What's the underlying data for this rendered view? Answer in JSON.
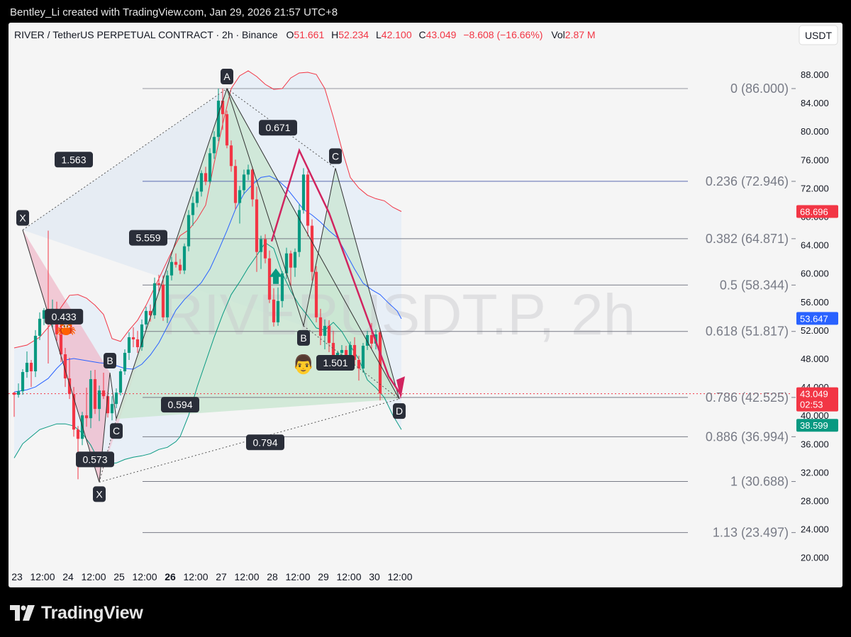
{
  "header": {
    "caption": "Bentley_Li created with TradingView.com, Jan 29, 2026 21:57 UTC+8"
  },
  "footer": {
    "brand": "TradingView"
  },
  "chart_data": {
    "type": "candlestick",
    "watermark": "RIVERUSDT.P, 2h",
    "legend": {
      "symbol": "RIVER / TetherUS PERPETUAL CONTRACT · 2h · Binance",
      "o_label": "O",
      "o": "51.661",
      "h_label": "H",
      "h": "52.234",
      "l_label": "L",
      "l": "42.100",
      "c_label": "C",
      "c": "43.049",
      "change": "−8.608 (−16.66%)",
      "vol_label": "Vol",
      "vol": "2.87 M"
    },
    "currency_button": "USDT",
    "y_axis": {
      "ylim": [
        16.5,
        91.5
      ],
      "ticks": [
        "88.000",
        "84.000",
        "80.000",
        "76.000",
        "72.000",
        "68.000",
        "64.000",
        "60.000",
        "56.000",
        "52.000",
        "48.000",
        "44.000",
        "40.000",
        "36.000",
        "32.000",
        "28.000",
        "24.000",
        "20.000"
      ]
    },
    "x_axis": {
      "labels": [
        {
          "t": 0,
          "label": "23",
          "bold": false
        },
        {
          "t": 6,
          "label": "12:00",
          "bold": false
        },
        {
          "t": 12,
          "label": "24",
          "bold": false
        },
        {
          "t": 18,
          "label": "12:00",
          "bold": false
        },
        {
          "t": 24,
          "label": "25",
          "bold": false
        },
        {
          "t": 30,
          "label": "12:00",
          "bold": false
        },
        {
          "t": 36,
          "label": "26",
          "bold": true
        },
        {
          "t": 42,
          "label": "12:00",
          "bold": false
        },
        {
          "t": 48,
          "label": "27",
          "bold": false
        },
        {
          "t": 54,
          "label": "12:00",
          "bold": false
        },
        {
          "t": 60,
          "label": "28",
          "bold": false
        },
        {
          "t": 66,
          "label": "12:00",
          "bold": false
        },
        {
          "t": 72,
          "label": "29",
          "bold": false
        },
        {
          "t": 78,
          "label": "12:00",
          "bold": false
        },
        {
          "t": 84,
          "label": "30",
          "bold": false
        },
        {
          "t": 90,
          "label": "12:00",
          "bold": false
        }
      ]
    },
    "fib_levels": [
      {
        "label": "0 (86.000)",
        "value": 86.0,
        "color": "#9598a1"
      },
      {
        "label": "0.236 (72.946)",
        "value": 72.946,
        "color": "#5b6bb0"
      },
      {
        "label": "0.382 (64.871)",
        "value": 64.871,
        "color": "#787b86"
      },
      {
        "label": "0.5 (58.344)",
        "value": 58.344,
        "color": "#787b86"
      },
      {
        "label": "0.618 (51.817)",
        "value": 51.817,
        "color": "#787b86"
      },
      {
        "label": "0.786 (42.525)",
        "value": 42.525,
        "color": "#787b86"
      },
      {
        "label": "0.886 (36.994)",
        "value": 36.994,
        "color": "#787b86"
      },
      {
        "label": "1 (30.688)",
        "value": 30.688,
        "color": "#787b86"
      },
      {
        "label": "1.13 (23.497)",
        "value": 23.497,
        "color": "#787b86"
      }
    ],
    "price_badges": [
      {
        "label": "68.696",
        "value": 68.696,
        "color": "#f23645"
      },
      {
        "label": "53.647",
        "value": 53.647,
        "color": "#2962ff"
      },
      {
        "label": "43.049",
        "sub": "02:53",
        "value": 43.049,
        "color": "#f23645"
      },
      {
        "label": "38.599",
        "value": 38.599,
        "color": "#089981"
      }
    ],
    "ratios": [
      {
        "label": "1.563",
        "t": 6,
        "v": 76.0
      },
      {
        "label": "5.559",
        "t": 23.5,
        "v": 65.0
      },
      {
        "label": "0.433",
        "t": 3.7,
        "v": 53.9
      },
      {
        "label": "0.594",
        "t": 31,
        "v": 41.5
      },
      {
        "label": "0.573",
        "t": 11,
        "v": 33.8
      },
      {
        "label": "0.794",
        "t": 51,
        "v": 36.2
      },
      {
        "label": "0.671",
        "t": 54,
        "v": 80.5
      },
      {
        "label": "1.501",
        "t": 67.5,
        "v": 47.4
      }
    ],
    "points_big": [
      {
        "label": "X",
        "t": -6,
        "v": 66.1
      },
      {
        "label": "A",
        "t": 42,
        "v": 86.0
      },
      {
        "label": "B",
        "t": 60,
        "v": 52.6
      },
      {
        "label": "C",
        "t": 67.5,
        "v": 74.8
      },
      {
        "label": "D",
        "t": 82.5,
        "v": 42.3
      }
    ],
    "points_small": [
      {
        "label": "X",
        "t": 12.0,
        "v": 30.6
      },
      {
        "label": "B",
        "t": 14.5,
        "v": 46.0
      },
      {
        "label": "C",
        "t": 16.0,
        "v": 39.5
      }
    ],
    "candles": [
      [
        43.2,
        43.3,
        39.8,
        42.9
      ],
      [
        42.9,
        44.5,
        42.5,
        43.4
      ],
      [
        43.4,
        46.5,
        42.9,
        46.1
      ],
      [
        46.1,
        49.0,
        45.3,
        47.4
      ],
      [
        47.4,
        47.8,
        44.0,
        46.2
      ],
      [
        46.2,
        52.0,
        45.4,
        51.2
      ],
      [
        51.2,
        54.5,
        50.6,
        53.6
      ],
      [
        53.6,
        55.1,
        52.7,
        54.8
      ],
      [
        54.8,
        66.0,
        47.3,
        53.8
      ],
      [
        53.8,
        56.3,
        52.3,
        55.0
      ],
      [
        55.0,
        56.0,
        50.5,
        51.4
      ],
      [
        51.4,
        54.0,
        47.5,
        48.6
      ],
      [
        48.6,
        49.5,
        44.0,
        45.2
      ],
      [
        45.2,
        48.1,
        42.3,
        43.0
      ],
      [
        43.0,
        44.0,
        37.0,
        38.0
      ],
      [
        38.0,
        38.5,
        31.0,
        36.7
      ],
      [
        36.7,
        40.5,
        35.8,
        40.0
      ],
      [
        40.0,
        43.9,
        38.4,
        39.6
      ],
      [
        39.6,
        46.3,
        38.2,
        45.1
      ],
      [
        45.1,
        46.4,
        40.2,
        40.9
      ],
      [
        40.9,
        44.2,
        39.2,
        43.5
      ],
      [
        43.5,
        46.0,
        42.3,
        42.7
      ],
      [
        42.7,
        43.3,
        39.7,
        40.3
      ],
      [
        40.3,
        42.7,
        39.3,
        41.6
      ],
      [
        41.6,
        43.8,
        41.0,
        43.2
      ],
      [
        43.2,
        46.5,
        42.8,
        46.2
      ],
      [
        46.2,
        49.3,
        45.7,
        48.8
      ],
      [
        48.8,
        51.7,
        47.8,
        51.0
      ],
      [
        51.0,
        52.4,
        49.6,
        50.7
      ],
      [
        50.7,
        51.9,
        48.8,
        49.6
      ],
      [
        49.6,
        53.5,
        49.1,
        52.8
      ],
      [
        52.8,
        55.3,
        52.0,
        54.7
      ],
      [
        54.7,
        55.6,
        53.2,
        54.1
      ],
      [
        54.1,
        59.4,
        53.6,
        58.6
      ],
      [
        58.6,
        59.8,
        57.4,
        58.4
      ],
      [
        58.4,
        59.7,
        53.3,
        53.8
      ],
      [
        53.8,
        60.4,
        53.0,
        59.7
      ],
      [
        59.7,
        62.3,
        59.0,
        61.6
      ],
      [
        61.6,
        62.8,
        60.8,
        61.2
      ],
      [
        61.2,
        62.0,
        59.9,
        60.4
      ],
      [
        60.4,
        64.2,
        59.9,
        63.8
      ],
      [
        63.8,
        68.9,
        63.1,
        68.2
      ],
      [
        68.2,
        70.8,
        66.7,
        69.9
      ],
      [
        69.9,
        72.0,
        69.3,
        71.5
      ],
      [
        71.5,
        74.5,
        70.8,
        74.1
      ],
      [
        74.1,
        75.0,
        72.4,
        72.9
      ],
      [
        72.9,
        77.6,
        72.6,
        76.9
      ],
      [
        76.9,
        80.0,
        76.1,
        79.2
      ],
      [
        79.2,
        86.0,
        78.6,
        84.3
      ],
      [
        84.3,
        86.0,
        80.2,
        82.4
      ],
      [
        82.4,
        82.9,
        77.6,
        78.0
      ],
      [
        78.0,
        78.7,
        74.3,
        75.1
      ],
      [
        75.1,
        76.0,
        69.0,
        69.9
      ],
      [
        69.9,
        72.3,
        67.0,
        71.7
      ],
      [
        71.7,
        74.6,
        71.1,
        73.9
      ],
      [
        73.9,
        75.3,
        73.1,
        74.6
      ],
      [
        74.6,
        75.0,
        69.4,
        70.4
      ],
      [
        70.4,
        72.2,
        60.2,
        63.0
      ],
      [
        63.0,
        65.3,
        60.6,
        64.8
      ],
      [
        64.8,
        65.5,
        61.4,
        62.1
      ],
      [
        62.1,
        63.2,
        55.8,
        56.3
      ],
      [
        56.3,
        57.9,
        52.5,
        53.1
      ],
      [
        53.1,
        58.0,
        52.6,
        56.1
      ],
      [
        56.1,
        60.3,
        55.2,
        60.0
      ],
      [
        60.0,
        63.6,
        59.2,
        62.8
      ],
      [
        62.8,
        63.2,
        58.2,
        60.8
      ],
      [
        60.8,
        63.5,
        59.5,
        63.0
      ],
      [
        63.0,
        69.7,
        62.3,
        68.9
      ],
      [
        68.9,
        74.8,
        68.4,
        73.9
      ],
      [
        73.9,
        74.4,
        65.2,
        66.7
      ],
      [
        66.7,
        67.6,
        59.0,
        60.2
      ],
      [
        60.2,
        61.0,
        53.1,
        53.8
      ],
      [
        53.8,
        55.0,
        49.9,
        51.2
      ],
      [
        51.2,
        53.5,
        49.3,
        52.6
      ],
      [
        52.6,
        53.4,
        48.9,
        50.2
      ],
      [
        50.2,
        51.9,
        46.6,
        47.6
      ],
      [
        47.6,
        49.1,
        46.5,
        48.8
      ],
      [
        48.8,
        49.9,
        48.0,
        49.2
      ],
      [
        49.2,
        49.8,
        47.2,
        48.5
      ],
      [
        48.5,
        50.4,
        48.0,
        49.9
      ],
      [
        49.9,
        51.0,
        47.1,
        47.8
      ],
      [
        47.8,
        48.4,
        44.9,
        46.6
      ],
      [
        46.6,
        50.2,
        46.0,
        49.8
      ],
      [
        49.8,
        51.9,
        49.2,
        51.3
      ],
      [
        51.3,
        53.0,
        49.4,
        50.1
      ],
      [
        50.1,
        52.1,
        49.3,
        51.4
      ],
      [
        51.7,
        52.2,
        42.1,
        43.1
      ]
    ],
    "bollinger_upper": [
      [
        -8,
        49.5
      ],
      [
        -5,
        49.9
      ],
      [
        -2,
        51.0
      ],
      [
        1,
        53.1
      ],
      [
        3,
        55.2
      ],
      [
        5,
        56.9
      ],
      [
        7,
        57.0
      ],
      [
        9,
        56.5
      ],
      [
        11,
        55.5
      ],
      [
        13,
        54.2
      ],
      [
        15,
        50.8
      ],
      [
        17,
        50.4
      ],
      [
        19,
        52.0
      ],
      [
        21,
        53.4
      ],
      [
        23,
        55.5
      ],
      [
        25,
        58.0
      ],
      [
        27,
        60.5
      ],
      [
        29,
        63.0
      ],
      [
        31,
        65.3
      ],
      [
        33,
        66.1
      ],
      [
        35,
        67.6
      ],
      [
        37,
        69.6
      ],
      [
        39,
        75.5
      ],
      [
        41,
        81.0
      ],
      [
        43,
        86.0
      ],
      [
        45,
        87.8
      ],
      [
        47,
        88.5
      ],
      [
        49,
        87.7
      ],
      [
        51,
        86.6
      ],
      [
        53,
        85.9
      ],
      [
        55,
        86.0
      ],
      [
        57,
        87.5
      ],
      [
        59,
        88.2
      ],
      [
        61,
        88.3
      ],
      [
        63,
        88.0
      ],
      [
        65,
        86.0
      ],
      [
        67,
        82.0
      ],
      [
        69,
        77.5
      ],
      [
        71,
        73.5
      ],
      [
        73,
        72.0
      ],
      [
        75,
        71.0
      ],
      [
        77,
        70.5
      ],
      [
        79,
        70.2
      ],
      [
        81,
        69.3
      ],
      [
        83,
        68.7
      ]
    ],
    "bollinger_basis": [
      [
        -8,
        43.3
      ],
      [
        -5,
        43.6
      ],
      [
        -3,
        44.0
      ],
      [
        0,
        45.2
      ],
      [
        2,
        46.6
      ],
      [
        4,
        47.8
      ],
      [
        6,
        48.0
      ],
      [
        8,
        47.8
      ],
      [
        10,
        47.6
      ],
      [
        12,
        47.4
      ],
      [
        14,
        47.3
      ],
      [
        16,
        47.0
      ],
      [
        18,
        46.6
      ],
      [
        20,
        46.5
      ],
      [
        22,
        47.2
      ],
      [
        24,
        48.5
      ],
      [
        26,
        50.2
      ],
      [
        28,
        52.5
      ],
      [
        30,
        54.8
      ],
      [
        32,
        56.3
      ],
      [
        34,
        57.5
      ],
      [
        36,
        58.7
      ],
      [
        38,
        60.6
      ],
      [
        40,
        63.2
      ],
      [
        42,
        66.0
      ],
      [
        44,
        69.0
      ],
      [
        46,
        71.2
      ],
      [
        48,
        72.5
      ],
      [
        50,
        73.5
      ],
      [
        52,
        73.7
      ],
      [
        54,
        73.1
      ],
      [
        56,
        72.0
      ],
      [
        58,
        70.5
      ],
      [
        60,
        69.0
      ],
      [
        62,
        68.2
      ],
      [
        64,
        67.2
      ],
      [
        66,
        66.0
      ],
      [
        68,
        65.0
      ],
      [
        70,
        62.8
      ],
      [
        72,
        60.6
      ],
      [
        74,
        58.6
      ],
      [
        76,
        57.7
      ],
      [
        78,
        57.0
      ],
      [
        80,
        55.8
      ],
      [
        82,
        54.7
      ],
      [
        83,
        53.6
      ]
    ],
    "bollinger_lower": [
      [
        -8,
        34.0
      ],
      [
        -6,
        36.0
      ],
      [
        -4,
        37.0
      ],
      [
        -2,
        38.0
      ],
      [
        0,
        38.4
      ],
      [
        2,
        38.8
      ],
      [
        4,
        38.8
      ],
      [
        6,
        38.5
      ],
      [
        8,
        37.5
      ],
      [
        10,
        35.8
      ],
      [
        12,
        33.5
      ],
      [
        14,
        33.2
      ],
      [
        16,
        33.3
      ],
      [
        18,
        33.8
      ],
      [
        20,
        34.1
      ],
      [
        22,
        34.3
      ],
      [
        24,
        34.6
      ],
      [
        26,
        35.2
      ],
      [
        28,
        35.5
      ],
      [
        30,
        36.3
      ],
      [
        31,
        37.0
      ],
      [
        33,
        40.0
      ],
      [
        35,
        44.0
      ],
      [
        37,
        47.5
      ],
      [
        39,
        51.0
      ],
      [
        41,
        54.2
      ],
      [
        43,
        57.0
      ],
      [
        45,
        58.8
      ],
      [
        47,
        60.8
      ],
      [
        49,
        62.5
      ],
      [
        51,
        64.3
      ],
      [
        53,
        63.5
      ],
      [
        55,
        60.0
      ],
      [
        57,
        57.5
      ],
      [
        59,
        55.5
      ],
      [
        61,
        54.0
      ],
      [
        63,
        52.3
      ],
      [
        65,
        52.0
      ],
      [
        67,
        53.1
      ],
      [
        69,
        51.8
      ],
      [
        71,
        49.8
      ],
      [
        73,
        47.9
      ],
      [
        75,
        45.0
      ],
      [
        77,
        43.9
      ],
      [
        79,
        42.5
      ],
      [
        81,
        40.0
      ],
      [
        83,
        38.0
      ]
    ],
    "guide_extent": [
      -12,
      82.8
    ],
    "current_price": 43.049
  }
}
